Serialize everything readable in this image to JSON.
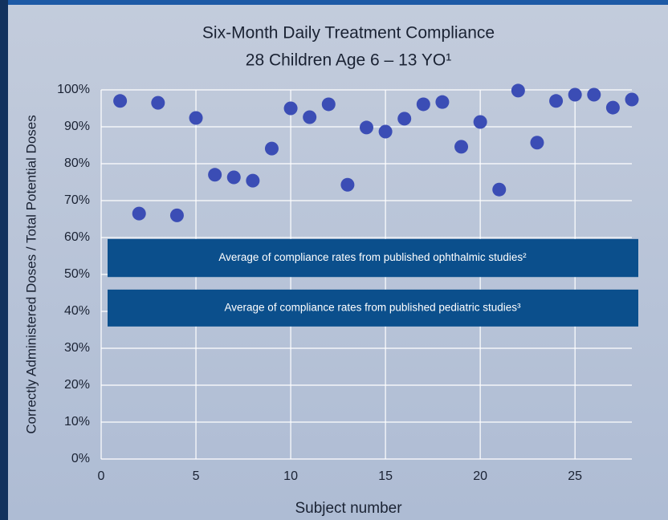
{
  "chart_data": {
    "type": "scatter",
    "title": "Six-Month Daily Treatment Compliance",
    "subtitle": "28 Children Age 6 – 13 YO¹",
    "x_label": "Subject number",
    "y_label": "Correctly Administered Doses / Total Potential Doses",
    "x": [
      1,
      2,
      3,
      4,
      5,
      6,
      7,
      8,
      9,
      10,
      11,
      12,
      13,
      14,
      15,
      16,
      17,
      18,
      19,
      20,
      21,
      22,
      23,
      24,
      25,
      26,
      27,
      28
    ],
    "series": [
      {
        "color": "#3b4db5",
        "values": [
          97,
          66.5,
          96.5,
          66,
          92.4,
          77,
          76.3,
          75.4,
          84.1,
          95,
          92.6,
          96.1,
          74.3,
          89.8,
          88.7,
          92.2,
          96.1,
          96.7,
          84.6,
          91.3,
          73,
          99.8,
          85.7,
          97,
          98.7,
          98.7,
          95.2,
          97.4
        ]
      }
    ],
    "xlim": [
      0,
      28
    ],
    "ylim": [
      0,
      100
    ],
    "xticks": [
      0,
      5,
      10,
      15,
      20,
      25
    ],
    "yticks": [
      {
        "value": 0,
        "label": "0%"
      },
      {
        "value": 10,
        "label": "10%"
      },
      {
        "value": 20,
        "label": "20%"
      },
      {
        "value": 30,
        "label": "30%"
      },
      {
        "value": 40,
        "label": "40%"
      },
      {
        "value": 50,
        "label": "50%"
      },
      {
        "value": 60,
        "label": "60%"
      },
      {
        "value": 70,
        "label": "70%"
      },
      {
        "value": 80,
        "label": "80%"
      },
      {
        "value": 90,
        "label": "90%"
      },
      {
        "value": 100,
        "label": "100%"
      }
    ],
    "grid": true,
    "bands": [
      {
        "label": "Average of compliance rates from published ophthalmic studies²",
        "ylim": [
          49.3,
          59.6
        ],
        "color": "#0b4f8c"
      },
      {
        "label": "Average of compliance rates from published pediatric studies³",
        "ylim": [
          35.9,
          45.9
        ],
        "color": "#0b4f8c"
      }
    ]
  }
}
